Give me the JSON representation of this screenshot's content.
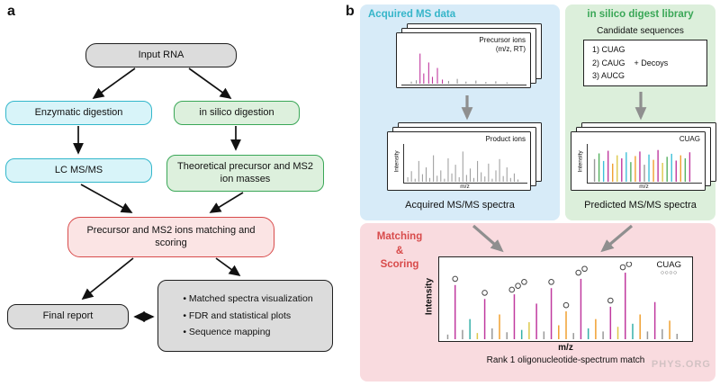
{
  "figure": {
    "panel_a_label": "a",
    "panel_b_label": "b"
  },
  "panel_a": {
    "input_rna": "Input RNA",
    "enzymatic": "Enzymatic digestion",
    "in_silico": "in silico digestion",
    "lc_msms": "LC MS/MS",
    "theoretical": "Theoretical precursor and MS2 ion masses",
    "matching": "Precursor and MS2 ions matching and scoring",
    "final_report": "Final report",
    "outputs": [
      "Matched spectra visualization",
      "FDR and statistical plots",
      "Sequence mapping"
    ]
  },
  "panel_b": {
    "acquired_label": "Acquired MS data",
    "library_label": "in silico digest library",
    "matching_label": "Matching\n&\nScoring",
    "precursor_card": {
      "title": "Precursor ions\n(m/z, RT)"
    },
    "product_card": {
      "title": "Product ions",
      "ylabel": "Intensity",
      "xlabel": "m/z"
    },
    "acquired_caption": "Acquired MS/MS spectra",
    "candidate_title": "Candidate sequences",
    "candidates": "1) CUAG\n2) CAUG\n3) AUCG",
    "decoys": "+ Decoys",
    "predicted_card": {
      "title": "CUAG",
      "ylabel": "Intensity",
      "xlabel": "m/z"
    },
    "predicted_caption": "Predicted MS/MS spectra",
    "match_plot": {
      "ylabel": "Intensity",
      "xlabel": "m/z",
      "annotation": "CUAG",
      "circles_row": "○○○○"
    },
    "match_caption": "Rank 1 oligonucleotide-spectrum match",
    "watermark": "PHYS.ORG"
  },
  "colors": {
    "cyan_border": "#33b7cb",
    "cyan_fill": "#d8f4f9",
    "green_border": "#3aa757",
    "green_fill": "#ddf0dd",
    "red_border": "#d84b4b",
    "red_fill": "#fbe4e4",
    "gray_fill": "#dcdcdc",
    "region_blue": "#d7ebf8",
    "region_green": "#dcefdb",
    "region_pink": "#f9dbdf",
    "label_cyan": "#35b5c9",
    "label_green": "#3aa757",
    "label_red": "#d84b4b",
    "arrow_gray": "#8f8f8f",
    "spectrum": {
      "m": "#c0399f",
      "o": "#f0a030",
      "t": "#35b0a8",
      "g": "#999999",
      "y": "#ddc84a",
      "c": "#3fc0d8",
      "gr": "#55b05f"
    }
  },
  "spectra": {
    "precursor": {
      "peaks": [
        [
          8,
          6,
          "g"
        ],
        [
          12,
          10,
          "g"
        ],
        [
          15,
          88,
          "m"
        ],
        [
          18,
          30,
          "m"
        ],
        [
          22,
          62,
          "m"
        ],
        [
          25,
          20,
          "m"
        ],
        [
          29,
          46,
          "m"
        ],
        [
          33,
          12,
          "m"
        ],
        [
          38,
          8,
          "g"
        ],
        [
          45,
          14,
          "g"
        ],
        [
          52,
          6,
          "g"
        ],
        [
          60,
          9,
          "g"
        ],
        [
          68,
          5,
          "g"
        ],
        [
          76,
          7,
          "g"
        ],
        [
          85,
          4,
          "g"
        ]
      ]
    },
    "product": {
      "peaks": [
        [
          3,
          12
        ],
        [
          6,
          28
        ],
        [
          9,
          8
        ],
        [
          12,
          55
        ],
        [
          15,
          20
        ],
        [
          18,
          38
        ],
        [
          21,
          10
        ],
        [
          24,
          70
        ],
        [
          27,
          16
        ],
        [
          30,
          30
        ],
        [
          33,
          8
        ],
        [
          36,
          62
        ],
        [
          39,
          22
        ],
        [
          42,
          45
        ],
        [
          45,
          12
        ],
        [
          48,
          80
        ],
        [
          51,
          18
        ],
        [
          54,
          35
        ],
        [
          57,
          10
        ],
        [
          60,
          55
        ],
        [
          63,
          25
        ],
        [
          66,
          14
        ],
        [
          69,
          48
        ],
        [
          72,
          8
        ],
        [
          75,
          30
        ],
        [
          78,
          60
        ],
        [
          81,
          15
        ],
        [
          84,
          38
        ],
        [
          87,
          10
        ],
        [
          90,
          22
        ],
        [
          93,
          6
        ]
      ]
    },
    "predicted": {
      "peaks": [
        [
          6,
          60,
          "g"
        ],
        [
          10,
          75,
          "gr"
        ],
        [
          14,
          55,
          "c"
        ],
        [
          18,
          82,
          "m"
        ],
        [
          22,
          48,
          "o"
        ],
        [
          26,
          70,
          "y"
        ],
        [
          30,
          62,
          "m"
        ],
        [
          34,
          78,
          "c"
        ],
        [
          38,
          52,
          "gr"
        ],
        [
          42,
          68,
          "o"
        ],
        [
          46,
          80,
          "m"
        ],
        [
          50,
          45,
          "g"
        ],
        [
          54,
          72,
          "c"
        ],
        [
          58,
          58,
          "o"
        ],
        [
          62,
          84,
          "m"
        ],
        [
          66,
          50,
          "y"
        ],
        [
          70,
          66,
          "gr"
        ],
        [
          74,
          74,
          "c"
        ],
        [
          78,
          56,
          "m"
        ],
        [
          82,
          70,
          "o"
        ],
        [
          86,
          62,
          "gr"
        ],
        [
          90,
          78,
          "m"
        ]
      ]
    },
    "match": {
      "peaks": [
        [
          2,
          6,
          "g"
        ],
        [
          5,
          70,
          "m"
        ],
        [
          8,
          12,
          "g"
        ],
        [
          11,
          26,
          "t"
        ],
        [
          14,
          8,
          "y"
        ],
        [
          17,
          52,
          "m"
        ],
        [
          20,
          14,
          "g"
        ],
        [
          23,
          32,
          "o"
        ],
        [
          26,
          9,
          "g"
        ],
        [
          29,
          58,
          "m"
        ],
        [
          32,
          12,
          "t"
        ],
        [
          35,
          22,
          "y"
        ],
        [
          38,
          46,
          "m"
        ],
        [
          41,
          10,
          "g"
        ],
        [
          44,
          66,
          "m"
        ],
        [
          47,
          18,
          "o"
        ],
        [
          50,
          36,
          "o"
        ],
        [
          53,
          8,
          "g"
        ],
        [
          56,
          78,
          "m"
        ],
        [
          59,
          14,
          "t"
        ],
        [
          62,
          26,
          "o"
        ],
        [
          65,
          10,
          "g"
        ],
        [
          68,
          42,
          "m"
        ],
        [
          71,
          16,
          "y"
        ],
        [
          74,
          86,
          "m"
        ],
        [
          77,
          20,
          "t"
        ],
        [
          80,
          32,
          "o"
        ],
        [
          83,
          10,
          "g"
        ],
        [
          86,
          48,
          "m"
        ],
        [
          89,
          13,
          "g"
        ],
        [
          92,
          24,
          "o"
        ],
        [
          95,
          7,
          "g"
        ]
      ],
      "circles": [
        [
          5,
          78
        ],
        [
          17,
          60
        ],
        [
          28,
          64
        ],
        [
          30.5,
          69
        ],
        [
          33,
          74
        ],
        [
          44,
          74
        ],
        [
          50,
          44
        ],
        [
          55,
          86
        ],
        [
          57.5,
          91
        ],
        [
          68,
          50
        ],
        [
          73,
          93
        ],
        [
          75.5,
          97
        ]
      ]
    }
  }
}
